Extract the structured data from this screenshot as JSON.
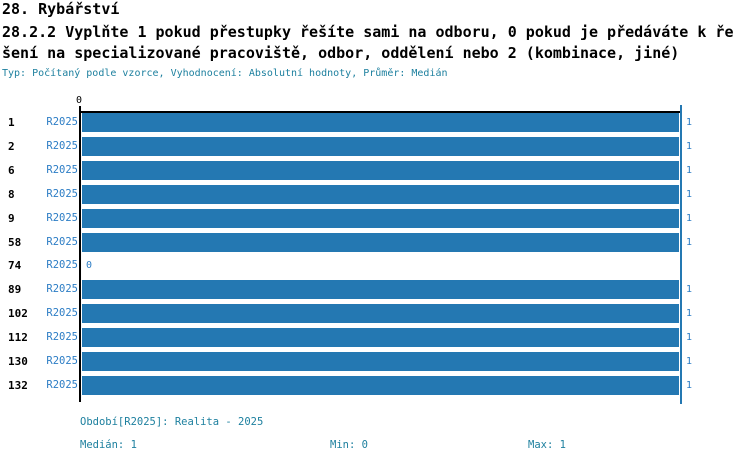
{
  "header": {
    "title": "28. Rybářství",
    "question_line1": "28.2.2 Vyplňte 1 pokud přestupky řešíte sami na odboru, 0 pokud je předáváte k ře",
    "question_line2": "šení na specializované pracoviště, odbor, oddělení nebo 2 (kombinace, jiné)",
    "meta": "Typ: Počítaný podle vzorce, Vyhodnocení: Absolutní hodnoty, Průměr: Medián"
  },
  "chart_data": {
    "type": "bar",
    "orientation": "horizontal",
    "title": "28.2.2 Vyplňte 1 pokud přestupky řešíte sami na odboru, 0 pokud je předáváte k řešení na specializované pracoviště, odbor, oddělení nebo 2 (kombinace, jiné)",
    "categories": [
      "1",
      "2",
      "6",
      "8",
      "9",
      "58",
      "74",
      "89",
      "102",
      "112",
      "130",
      "132"
    ],
    "series": [
      {
        "name": "R2025",
        "values": [
          1,
          1,
          1,
          1,
          1,
          1,
          0,
          1,
          1,
          1,
          1,
          1
        ]
      }
    ],
    "xlim": [
      0,
      1
    ],
    "x_tick_label": "0",
    "value_line_at": 1,
    "grid": false,
    "legend_position": "none",
    "bar_color": "#2478b2",
    "series_label_color": "#2c7dc5",
    "axis_color": "#000000"
  },
  "footer": {
    "period": "Období[R2025]: Realita - 2025",
    "median": "Medián: 1",
    "min": "Min: 0",
    "max": "Max: 1"
  },
  "colors": {
    "bar": "#2478b2",
    "teal_text": "#1e809f",
    "blue_label": "#2c7dc5",
    "axis": "#000000",
    "background": "#ffffff"
  }
}
